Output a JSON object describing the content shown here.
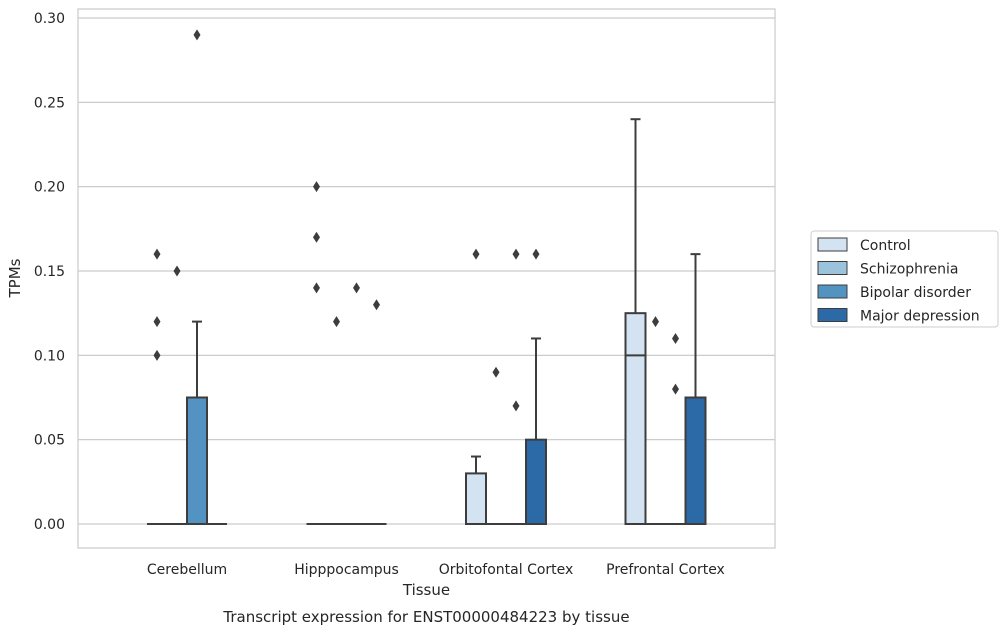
{
  "chart_data": {
    "type": "box",
    "title": "Transcript expression for ENST00000484223 by tissue",
    "xlabel": "Tissue",
    "ylabel": "TPMs",
    "ylim": [
      -0.014,
      0.305
    ],
    "yticks": [
      "0.00",
      "0.05",
      "0.10",
      "0.15",
      "0.20",
      "0.25",
      "0.30"
    ],
    "ytick_values": [
      0,
      0.05,
      0.1,
      0.15,
      0.2,
      0.25,
      0.3
    ],
    "grid": "horizontal",
    "legend_position": "right",
    "categories": [
      "Cerebellum",
      "Hipppocampus",
      "Orbitofontal Cortex",
      "Prefrontal Cortex"
    ],
    "series": [
      {
        "name": "Control",
        "color": "#d3e3f1",
        "boxes": [
          {
            "q1": 0,
            "median": 0,
            "q3": 0,
            "whisker_low": 0,
            "whisker_high": 0,
            "outliers": [
              0.1,
              0.12,
              0.16
            ]
          },
          {
            "q1": 0,
            "median": 0,
            "q3": 0,
            "whisker_low": 0,
            "whisker_high": 0,
            "outliers": [
              0.14,
              0.17,
              0.2
            ]
          },
          {
            "q1": 0,
            "median": 0,
            "q3": 0.03,
            "whisker_low": 0,
            "whisker_high": 0.04,
            "outliers": [
              0.16
            ]
          },
          {
            "q1": 0,
            "median": 0.1,
            "q3": 0.125,
            "whisker_low": 0,
            "whisker_high": 0.24,
            "outliers": []
          }
        ]
      },
      {
        "name": "Schizophrenia",
        "color": "#9cc3dc",
        "boxes": [
          {
            "q1": 0,
            "median": 0,
            "q3": 0,
            "whisker_low": 0,
            "whisker_high": 0,
            "outliers": [
              0.15
            ]
          },
          {
            "q1": 0,
            "median": 0,
            "q3": 0,
            "whisker_low": 0,
            "whisker_high": 0,
            "outliers": [
              0.12
            ]
          },
          {
            "q1": 0,
            "median": 0,
            "q3": 0,
            "whisker_low": 0,
            "whisker_high": 0,
            "outliers": [
              0.09
            ]
          },
          {
            "q1": 0,
            "median": 0,
            "q3": 0,
            "whisker_low": 0,
            "whisker_high": 0,
            "outliers": [
              0.12
            ]
          }
        ]
      },
      {
        "name": "Bipolar disorder",
        "color": "#5393c2",
        "boxes": [
          {
            "q1": 0,
            "median": 0,
            "q3": 0.075,
            "whisker_low": 0,
            "whisker_high": 0.12,
            "outliers": [
              0.29
            ]
          },
          {
            "q1": 0,
            "median": 0,
            "q3": 0,
            "whisker_low": 0,
            "whisker_high": 0,
            "outliers": [
              0.14
            ]
          },
          {
            "q1": 0,
            "median": 0,
            "q3": 0,
            "whisker_low": 0,
            "whisker_high": 0,
            "outliers": [
              0.07,
              0.16
            ]
          },
          {
            "q1": 0,
            "median": 0,
            "q3": 0,
            "whisker_low": 0,
            "whisker_high": 0,
            "outliers": [
              0.08,
              0.11
            ]
          }
        ]
      },
      {
        "name": "Major depression",
        "color": "#2b69a7",
        "boxes": [
          {
            "q1": 0,
            "median": 0,
            "q3": 0,
            "whisker_low": 0,
            "whisker_high": 0,
            "outliers": []
          },
          {
            "q1": 0,
            "median": 0,
            "q3": 0,
            "whisker_low": 0,
            "whisker_high": 0,
            "outliers": [
              0.13
            ]
          },
          {
            "q1": 0,
            "median": 0,
            "q3": 0.05,
            "whisker_low": 0,
            "whisker_high": 0.11,
            "outliers": [
              0.16
            ]
          },
          {
            "q1": 0,
            "median": 0,
            "q3": 0.075,
            "whisker_low": 0,
            "whisker_high": 0.16,
            "outliers": []
          }
        ]
      }
    ]
  }
}
